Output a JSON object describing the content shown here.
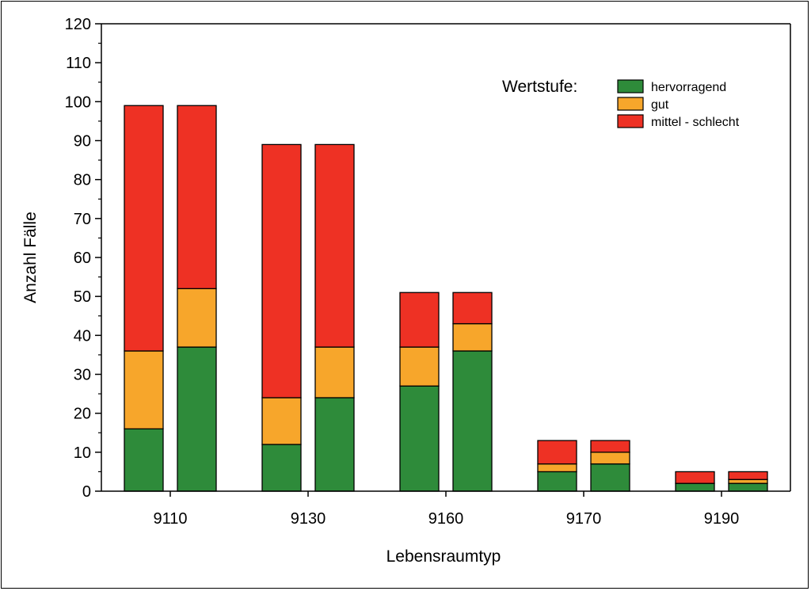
{
  "chart_data": {
    "type": "bar",
    "stacked": true,
    "xlabel": "Lebensraumtyp",
    "ylabel": "Anzahl Fälle",
    "ylim": [
      0,
      120
    ],
    "yticks": [
      0,
      10,
      20,
      30,
      40,
      50,
      60,
      70,
      80,
      90,
      100,
      110,
      120
    ],
    "categories": [
      "9110",
      "9130",
      "9160",
      "9170",
      "9190"
    ],
    "bars_per_category": 2,
    "series": [
      {
        "name": "hervorragend",
        "color": "#2e8b3a",
        "values": [
          [
            16,
            37
          ],
          [
            12,
            24
          ],
          [
            27,
            36
          ],
          [
            5,
            7
          ],
          [
            2,
            2
          ]
        ]
      },
      {
        "name": "gut",
        "color": "#f7a62b",
        "values": [
          [
            20,
            15
          ],
          [
            12,
            13
          ],
          [
            10,
            7
          ],
          [
            2,
            3
          ],
          [
            0,
            1
          ]
        ]
      },
      {
        "name": "mittel - schlecht",
        "color": "#ee3124",
        "values": [
          [
            63,
            47
          ],
          [
            65,
            52
          ],
          [
            14,
            8
          ],
          [
            6,
            3
          ],
          [
            3,
            2
          ]
        ]
      }
    ],
    "legend": {
      "title": "Wertstufe:",
      "position": "top-right"
    },
    "grid": false
  }
}
